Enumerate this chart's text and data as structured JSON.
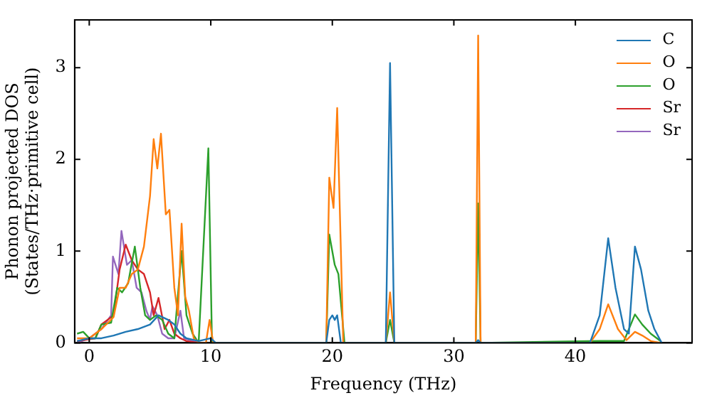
{
  "chart_data": {
    "type": "line",
    "xlabel": "Frequency (THz)",
    "ylabel": "Phonon projected DOS\n(States/THz·primitive cell)",
    "xlim": [
      -1.2,
      49.6
    ],
    "ylim": [
      0,
      3.52
    ],
    "xticks": [
      0,
      10,
      20,
      30,
      40
    ],
    "yticks": [
      0,
      1,
      2,
      3
    ],
    "grid": false,
    "legend": "top right",
    "marker": "none",
    "line_style": "solid",
    "series": [
      {
        "name": "C",
        "color": "#1f77b4",
        "x": [
          -1,
          0,
          1,
          2,
          3,
          4,
          5,
          5.7,
          6.5,
          7,
          7.5,
          8,
          9,
          10,
          10.4,
          19.5,
          19.75,
          20,
          20.2,
          20.4,
          20.7,
          24.4,
          24.75,
          25.1,
          31.8,
          32,
          32.2,
          41.2,
          42,
          42.7,
          43.3,
          44,
          44.4,
          44.9,
          45.4,
          46,
          46.5,
          47.1
        ],
        "values": [
          0.02,
          0.05,
          0.05,
          0.08,
          0.12,
          0.15,
          0.2,
          0.3,
          0.25,
          0.2,
          0.1,
          0.05,
          0.02,
          0.05,
          0,
          0,
          0.25,
          0.3,
          0.25,
          0.3,
          0,
          0,
          3.05,
          0,
          0,
          0.03,
          0,
          0,
          0.3,
          1.14,
          0.6,
          0.15,
          0.1,
          1.05,
          0.8,
          0.35,
          0.15,
          0
        ]
      },
      {
        "name": "O",
        "color": "#ff7f0e",
        "x": [
          -1,
          0,
          1,
          2,
          2.5,
          3,
          3.5,
          4,
          4.5,
          5,
          5.3,
          5.6,
          5.9,
          6.3,
          6.6,
          7,
          7.3,
          7.6,
          7.9,
          8.2,
          8.6,
          9,
          9.6,
          9.9,
          10.2,
          19.5,
          19.75,
          20.1,
          20.4,
          20.9,
          24.4,
          24.75,
          25.1,
          31.8,
          32,
          32.2,
          41.2,
          42,
          42.7,
          43.5,
          44.2,
          44.9,
          45.5,
          46.2,
          47
        ],
        "values": [
          0.05,
          0.05,
          0.15,
          0.28,
          0.6,
          0.6,
          0.75,
          0.8,
          1.05,
          1.6,
          2.22,
          1.9,
          2.28,
          1.4,
          1.45,
          0.6,
          0.3,
          1.3,
          0.5,
          0.35,
          0.05,
          0,
          0,
          0.25,
          0,
          0,
          1.8,
          1.47,
          2.56,
          0,
          0,
          0.55,
          0,
          0,
          3.35,
          0,
          0,
          0.15,
          0.42,
          0.15,
          0.03,
          0.12,
          0.08,
          0.02,
          0
        ]
      },
      {
        "name": "O",
        "color": "#2ca02c",
        "x": [
          -1,
          -0.5,
          0,
          0.5,
          1,
          1.8,
          2.3,
          2.7,
          3.2,
          3.75,
          4.2,
          4.6,
          5,
          5.5,
          6,
          6.5,
          7,
          7.6,
          8,
          8.5,
          9,
          9.8,
          10.1,
          19.5,
          19.75,
          20.2,
          20.5,
          21,
          24.4,
          24.75,
          25.1,
          31.8,
          32,
          32.2,
          42,
          44,
          44.9,
          45.5,
          46.2,
          47
        ],
        "values": [
          0.1,
          0.12,
          0.05,
          0.05,
          0.2,
          0.22,
          0.6,
          0.55,
          0.65,
          1.05,
          0.6,
          0.3,
          0.25,
          0.3,
          0.25,
          0.1,
          0.05,
          1,
          0.3,
          0.1,
          0,
          2.12,
          0,
          0,
          1.18,
          0.85,
          0.75,
          0,
          0,
          0.25,
          0,
          0,
          1.52,
          0,
          0.02,
          0.02,
          0.31,
          0.2,
          0.1,
          0.02
        ]
      },
      {
        "name": "Sr",
        "color": "#d62728",
        "x": [
          -1,
          0.5,
          1,
          1.5,
          2,
          2.5,
          3,
          3.5,
          4,
          4.5,
          5,
          5.3,
          5.7,
          6.2,
          6.6,
          7,
          7.5,
          8,
          9
        ],
        "values": [
          0.02,
          0.05,
          0.2,
          0.25,
          0.3,
          0.8,
          1.07,
          0.9,
          0.8,
          0.75,
          0.55,
          0.3,
          0.49,
          0.15,
          0.25,
          0.1,
          0.05,
          0.02,
          0
        ]
      },
      {
        "name": "Sr",
        "color": "#9467bd",
        "x": [
          -1,
          0,
          1,
          1.8,
          1.95,
          2.4,
          2.65,
          3.1,
          3.5,
          3.9,
          4.3,
          4.7,
          5,
          5.2,
          5.6,
          6,
          6.5,
          7,
          7.5,
          7.8,
          8.5,
          9
        ],
        "values": [
          0,
          0.05,
          0.15,
          0.3,
          0.94,
          0.75,
          1.22,
          0.85,
          0.9,
          0.6,
          0.55,
          0.35,
          0.25,
          0.4,
          0.3,
          0.1,
          0.05,
          0.05,
          0.35,
          0.05,
          0.02,
          0
        ]
      }
    ]
  }
}
